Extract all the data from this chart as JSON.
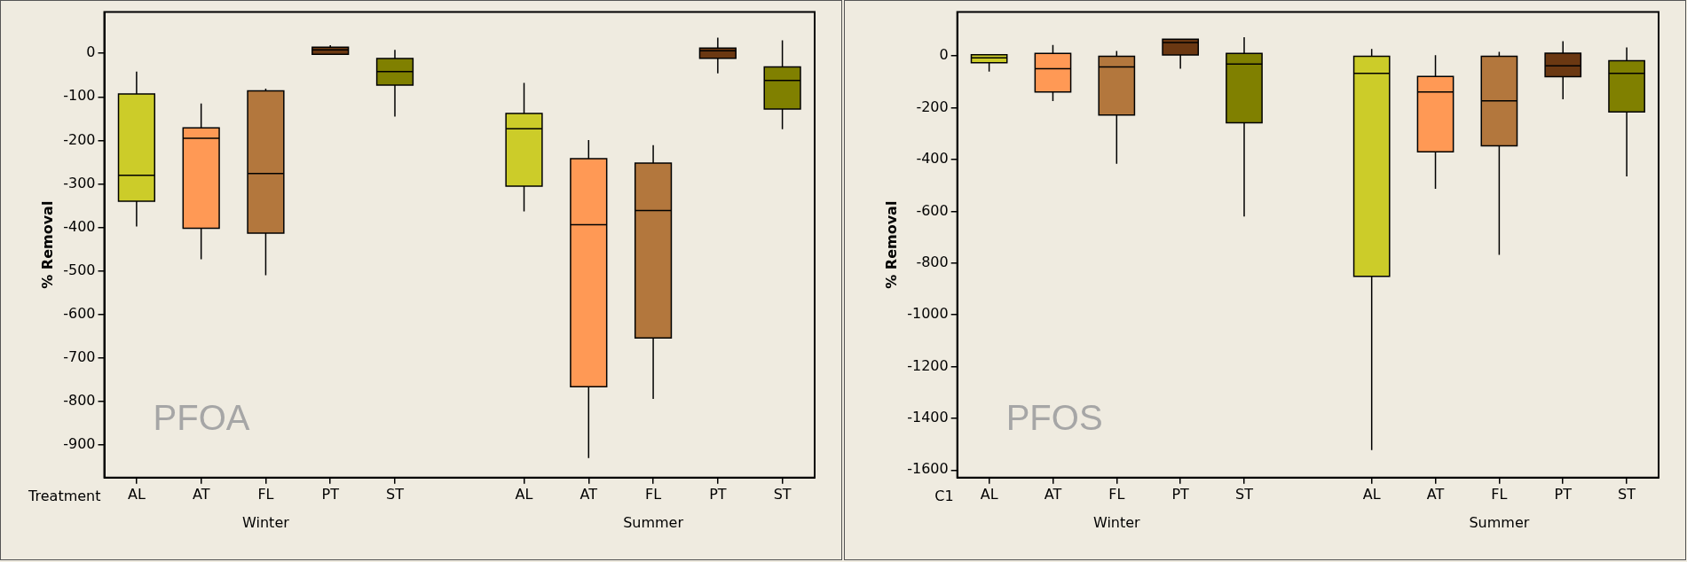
{
  "chart_data": [
    {
      "type": "box",
      "ylabel": "% Removal",
      "categories": [
        "AL",
        "AT",
        "FL",
        "PT",
        "ST",
        null,
        "AL",
        "AT",
        "FL",
        "PT",
        "ST"
      ],
      "colors": [
        "#cccc29",
        "#ff9955",
        "#b3773d",
        "#6b3812",
        "#808000",
        null,
        "#cccc29",
        "#ff9955",
        "#b3773d",
        "#6b3812",
        "#808000"
      ],
      "boxes": [
        {
          "low": -398,
          "q1": -340,
          "median": -280,
          "q3": -93,
          "high": -42
        },
        {
          "low": -473,
          "q1": -402,
          "median": -195,
          "q3": -171,
          "high": -115
        },
        {
          "low": -510,
          "q1": -413,
          "median": -276,
          "q3": -86,
          "high": -81
        },
        {
          "low": -2,
          "q1": -2,
          "median": 8,
          "q3": 14,
          "high": 19
        },
        {
          "low": -145,
          "q1": -73,
          "median": -42,
          "q3": -12,
          "high": 8
        },
        null,
        {
          "low": -363,
          "q1": -305,
          "median": -173,
          "q3": -138,
          "high": -68
        },
        {
          "low": -930,
          "q1": -766,
          "median": -394,
          "q3": -242,
          "high": -199
        },
        {
          "low": -794,
          "q1": -654,
          "median": -361,
          "q3": -252,
          "high": -211
        },
        {
          "low": -46,
          "q1": -11,
          "median": 6,
          "q3": 12,
          "high": 36
        },
        {
          "low": -174,
          "q1": -128,
          "median": -62,
          "q3": -31,
          "high": 30
        }
      ],
      "ylim": [
        -975,
        95
      ],
      "yticks": [
        0,
        -100,
        -200,
        -300,
        -400,
        -500,
        -600,
        -700,
        -800,
        -900
      ],
      "grid": false,
      "annotations": [
        "Treatment",
        "Winter",
        "Summer",
        "PFOA"
      ]
    },
    {
      "type": "box",
      "ylabel": "% Removal",
      "categories": [
        "AL",
        "AT",
        "FL",
        "PT",
        "ST",
        null,
        "AL",
        "AT",
        "FL",
        "PT",
        "ST"
      ],
      "colors": [
        "#cccc29",
        "#ff9955",
        "#b3773d",
        "#6b3812",
        "#808000",
        null,
        "#cccc29",
        "#ff9955",
        "#b3773d",
        "#6b3812",
        "#808000"
      ],
      "boxes": [
        {
          "low": -60,
          "q1": -26,
          "median": -7,
          "q3": 5,
          "high": 5
        },
        {
          "low": -174,
          "q1": -139,
          "median": -49,
          "q3": 10,
          "high": 43
        },
        {
          "low": -416,
          "q1": -228,
          "median": -42,
          "q3": -1,
          "high": 20
        },
        {
          "low": -49,
          "q1": 4,
          "median": 52,
          "q3": 65,
          "high": 65
        },
        {
          "low": -620,
          "q1": -258,
          "median": -31,
          "q3": 10,
          "high": 73
        },
        null,
        {
          "low": -1523,
          "q1": -851,
          "median": -67,
          "q3": -1,
          "high": 27
        },
        {
          "low": -513,
          "q1": -370,
          "median": -139,
          "q3": -79,
          "high": 3
        },
        {
          "low": -768,
          "q1": -347,
          "median": -173,
          "q3": -1,
          "high": 16
        },
        {
          "low": -167,
          "q1": -80,
          "median": -38,
          "q3": 11,
          "high": 57
        },
        {
          "low": -465,
          "q1": -216,
          "median": -67,
          "q3": -18,
          "high": 33
        }
      ],
      "ylim": [
        -1629,
        170
      ],
      "yticks": [
        0,
        -200,
        -400,
        -600,
        -800,
        -1000,
        -1200,
        -1400,
        -1600
      ],
      "grid": false,
      "annotations": [
        "C1",
        "Winter",
        "Summer",
        "PFOS"
      ]
    }
  ]
}
